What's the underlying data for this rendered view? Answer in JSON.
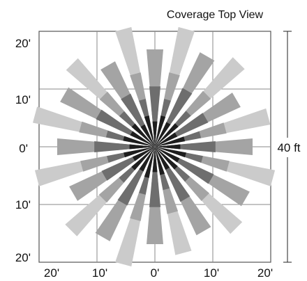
{
  "title": "Coverage Top View",
  "y_tick_labels": [
    "20'",
    "10'",
    "0'",
    "10'",
    "20'"
  ],
  "x_tick_labels": [
    "20'",
    "10'",
    "0'",
    "10'",
    "20'"
  ],
  "dimension_label": "40 ft",
  "grid_range_ft": [
    -20,
    20
  ],
  "colors": {
    "outer_wedge": "#cbcbcb",
    "mid_wedge": "#a4a4a4",
    "inner_wedge": "#6e6e6e",
    "core_wedge": "#1e1e1e",
    "grid": "#8a8a8a"
  }
}
